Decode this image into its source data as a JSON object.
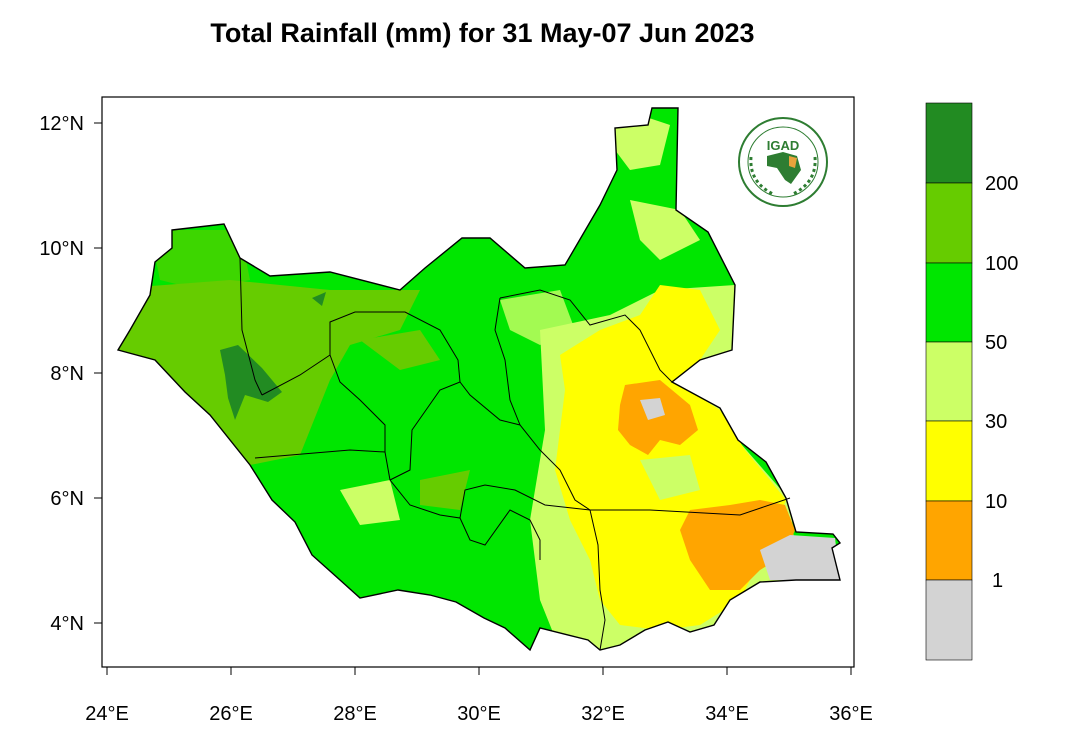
{
  "title": "Total Rainfall (mm) for 31 May-07 Jun 2023",
  "logo": {
    "text": "IGAD",
    "ring_text": "INTERGOVERNMENTAL AUTHORITY ON DEVELOPMENT",
    "ring_text_fr": "AUTORITE INTERGOUVERNEMENTALE POUR LE DEVELOPPEMENT"
  },
  "axes": {
    "x_ticks": [
      "24°E",
      "26°E",
      "28°E",
      "30°E",
      "32°E",
      "34°E",
      "36°E"
    ],
    "y_ticks": [
      "12°N",
      "10°N",
      "8°N",
      "6°N",
      "4°N"
    ]
  },
  "legend": {
    "bins": [
      {
        "color": "#d3d3d3",
        "range": "< 1"
      },
      {
        "color": "#ffa500",
        "range": "1-10"
      },
      {
        "color": "#ffff00",
        "range": "10-30"
      },
      {
        "color": "#ccff66",
        "range": "30-50"
      },
      {
        "color": "#00e600",
        "range": "50-100"
      },
      {
        "color": "#66cc00",
        "range": "100-200"
      },
      {
        "color": "#228b22",
        "range": "> 200"
      }
    ],
    "labels": [
      "1",
      "10",
      "30",
      "50",
      "100",
      "200"
    ]
  }
}
